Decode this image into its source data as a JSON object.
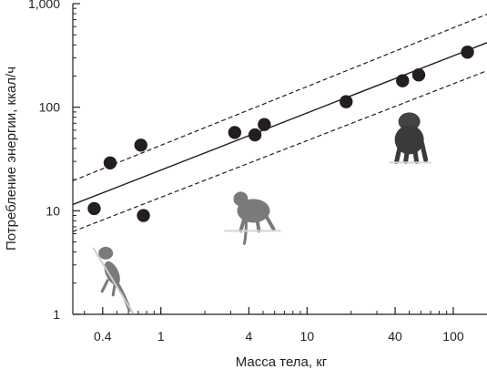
{
  "chart_data": {
    "type": "scatter",
    "title": "",
    "xlabel": "Масса тела, кг",
    "ylabel": "Потребление энергии, ккал/ч",
    "x_scale": "log",
    "y_scale": "log",
    "xlim": [
      0.25,
      170
    ],
    "ylim": [
      1,
      1000
    ],
    "x_ticks": [
      {
        "value": 0.4,
        "label": "0.4"
      },
      {
        "value": 1,
        "label": "1"
      },
      {
        "value": 4,
        "label": "4"
      },
      {
        "value": 10,
        "label": "10"
      },
      {
        "value": 40,
        "label": "40"
      },
      {
        "value": 100,
        "label": "100"
      }
    ],
    "y_ticks": [
      {
        "value": 1,
        "label": "1"
      },
      {
        "value": 10,
        "label": "10"
      },
      {
        "value": 100,
        "label": "100"
      },
      {
        "value": 1000,
        "label": "1,000"
      }
    ],
    "grid": false,
    "points": [
      {
        "x": 0.35,
        "y": 10.5
      },
      {
        "x": 0.45,
        "y": 29
      },
      {
        "x": 0.73,
        "y": 43
      },
      {
        "x": 0.76,
        "y": 9
      },
      {
        "x": 3.2,
        "y": 57
      },
      {
        "x": 4.4,
        "y": 54
      },
      {
        "x": 5.1,
        "y": 68
      },
      {
        "x": 18.5,
        "y": 113
      },
      {
        "x": 45,
        "y": 180
      },
      {
        "x": 58,
        "y": 205
      },
      {
        "x": 125,
        "y": 340
      }
    ],
    "fit_line": {
      "x": [
        0.25,
        170
      ],
      "y": [
        11.5,
        420
      ]
    },
    "confidence_bands": [
      {
        "x": [
          0.25,
          170
        ],
        "y": [
          19.5,
          790
        ]
      },
      {
        "x": [
          0.25,
          170
        ],
        "y": [
          6.3,
          225
        ]
      }
    ],
    "annotations": [
      {
        "label": "marmoset-silhouette",
        "x": 0.42,
        "y": 2.6
      },
      {
        "label": "macaque-silhouette",
        "x": 4.3,
        "y": 10
      },
      {
        "label": "chimpanzee-silhouette",
        "x": 50,
        "y": 57
      }
    ],
    "colors": {
      "axis": "#231f20",
      "point": "#231f20",
      "line": "#231f20",
      "animal": "#7a7a7a"
    }
  }
}
